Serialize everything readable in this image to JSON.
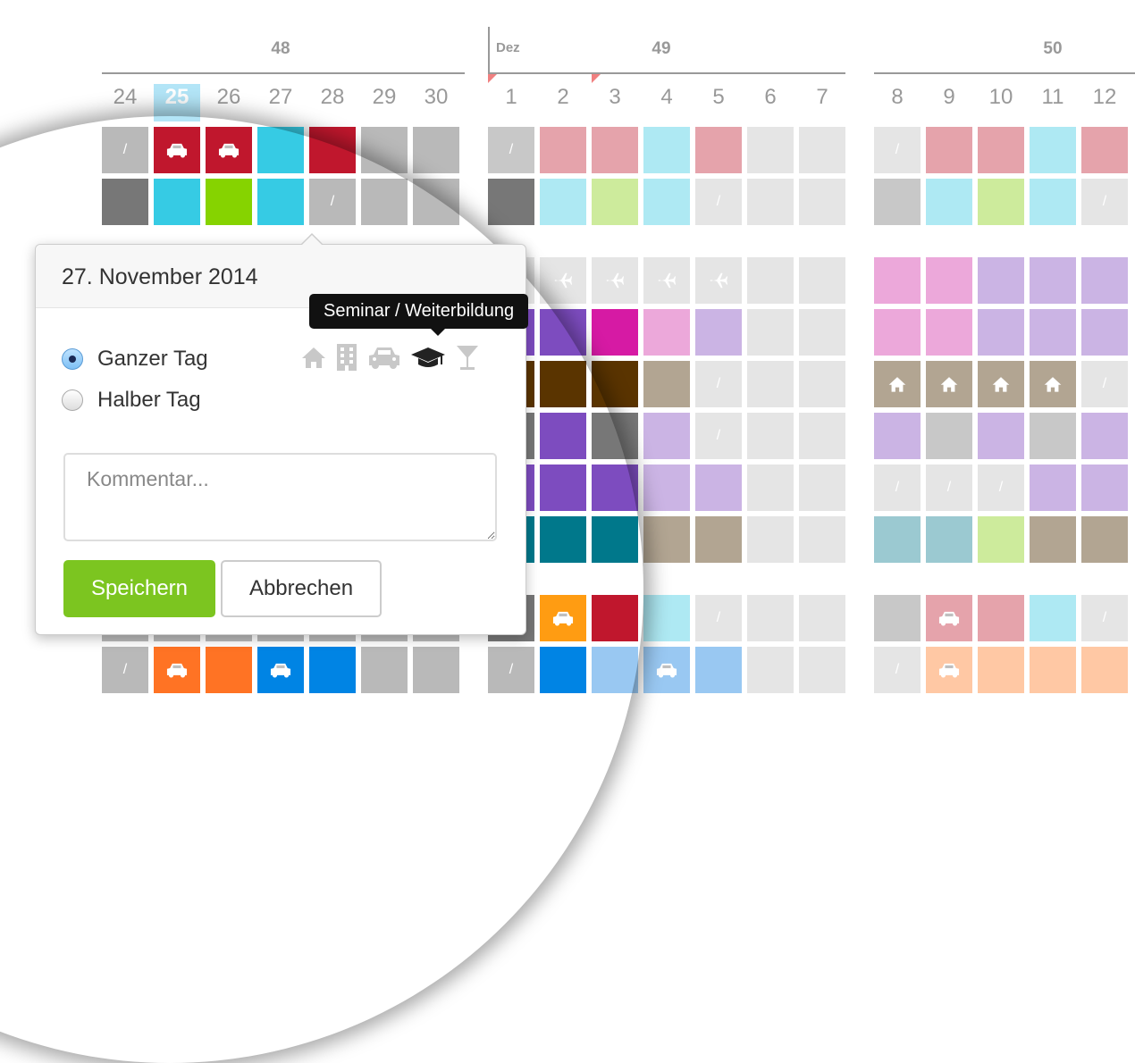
{
  "colors": {
    "gray": "#b9b9b9",
    "darkgray": "#777777",
    "red": "#c0172d",
    "cyan": "#36cbe4",
    "green": "#86d300",
    "purple": "#7d4cbf",
    "magenta": "#d61aa4",
    "brown": "#5a3400",
    "teal": "#00788b",
    "orange": "#ff9c12",
    "orangered": "#ff7324",
    "blue": "#0084e4",
    "lightgray": "#e5e5e5",
    "midgray": "#c8c8c8",
    "pinkred": "#e5a3ab",
    "lightcyan": "#aee9f3",
    "lightgreen": "#cdeb9c",
    "lightpink": "#eca8da",
    "lavender": "#cbb4e4",
    "tan": "#b2a592",
    "steel": "#9bc9d1",
    "peach": "#ffc8a4",
    "lightblue": "#99c8f2",
    "darkpurple": "#7d4cbf"
  },
  "calendar": {
    "weeks": [
      "48",
      "49",
      "50"
    ],
    "month_label": "Dez",
    "days": [
      "24",
      "25",
      "26",
      "27",
      "28",
      "29",
      "30",
      "1",
      "2",
      "3",
      "4",
      "5",
      "6",
      "7",
      "8",
      "9",
      "10",
      "11",
      "12"
    ],
    "today_index": 1,
    "rows": [
      [
        [
          "gray",
          "slash"
        ],
        [
          "red",
          "car"
        ],
        [
          "red",
          "car"
        ],
        [
          "cyan",
          ""
        ],
        [
          "red",
          ""
        ],
        [
          "gray",
          ""
        ],
        [
          "gray",
          ""
        ],
        [
          "midgray",
          "slash"
        ],
        [
          "pinkred",
          ""
        ],
        [
          "pinkred",
          ""
        ],
        [
          "lightcyan",
          ""
        ],
        [
          "pinkred",
          ""
        ],
        [
          "lightgray",
          ""
        ],
        [
          "lightgray",
          ""
        ],
        [
          "lightgray",
          "slash"
        ],
        [
          "pinkred",
          ""
        ],
        [
          "pinkred",
          ""
        ],
        [
          "lightcyan",
          ""
        ],
        [
          "pinkred",
          ""
        ]
      ],
      [
        [
          "darkgray",
          ""
        ],
        [
          "cyan",
          ""
        ],
        [
          "green",
          ""
        ],
        [
          "cyan",
          ""
        ],
        [
          "gray",
          "slash"
        ],
        [
          "gray",
          ""
        ],
        [
          "gray",
          ""
        ],
        [
          "darkgray",
          ""
        ],
        [
          "lightcyan",
          ""
        ],
        [
          "lightgreen",
          ""
        ],
        [
          "lightcyan",
          ""
        ],
        [
          "lightgray",
          "slash"
        ],
        [
          "lightgray",
          ""
        ],
        [
          "lightgray",
          ""
        ],
        [
          "midgray",
          ""
        ],
        [
          "lightcyan",
          ""
        ],
        [
          "lightgreen",
          ""
        ],
        [
          "lightcyan",
          ""
        ],
        [
          "lightgray",
          "slash"
        ]
      ],
      [
        [
          "gray",
          ""
        ],
        [
          "gray",
          ""
        ],
        [
          "gray",
          ""
        ],
        [
          "gray",
          ""
        ],
        [
          "gray",
          ""
        ],
        [
          "gray",
          ""
        ],
        [
          "gray",
          ""
        ],
        [
          "lightgray",
          ""
        ],
        [
          "lightgray",
          "plane"
        ],
        [
          "lightgray",
          "plane"
        ],
        [
          "lightgray",
          "plane"
        ],
        [
          "lightgray",
          "plane"
        ],
        [
          "lightgray",
          ""
        ],
        [
          "lightgray",
          ""
        ],
        [
          "lightpink",
          ""
        ],
        [
          "lightpink",
          ""
        ],
        [
          "lavender",
          ""
        ],
        [
          "lavender",
          ""
        ],
        [
          "lavender",
          ""
        ]
      ],
      [
        [
          "gray",
          ""
        ],
        [
          "gray",
          ""
        ],
        [
          "gray",
          ""
        ],
        [
          "gray",
          ""
        ],
        [
          "gray",
          ""
        ],
        [
          "gray",
          ""
        ],
        [
          "gray",
          ""
        ],
        [
          "purple",
          ""
        ],
        [
          "purple",
          ""
        ],
        [
          "magenta",
          ""
        ],
        [
          "lightpink",
          ""
        ],
        [
          "lavender",
          ""
        ],
        [
          "lightgray",
          ""
        ],
        [
          "lightgray",
          ""
        ],
        [
          "lightpink",
          ""
        ],
        [
          "lightpink",
          ""
        ],
        [
          "lavender",
          ""
        ],
        [
          "lavender",
          ""
        ],
        [
          "lavender",
          ""
        ]
      ],
      [
        [
          "gray",
          ""
        ],
        [
          "gray",
          ""
        ],
        [
          "gray",
          ""
        ],
        [
          "gray",
          ""
        ],
        [
          "gray",
          ""
        ],
        [
          "gray",
          ""
        ],
        [
          "gray",
          ""
        ],
        [
          "brown",
          ""
        ],
        [
          "brown",
          ""
        ],
        [
          "brown",
          ""
        ],
        [
          "tan",
          ""
        ],
        [
          "lightgray",
          "slash"
        ],
        [
          "lightgray",
          ""
        ],
        [
          "lightgray",
          ""
        ],
        [
          "tan",
          "house"
        ],
        [
          "tan",
          "house"
        ],
        [
          "tan",
          "house"
        ],
        [
          "tan",
          "house"
        ],
        [
          "lightgray",
          "slash"
        ]
      ],
      [
        [
          "gray",
          ""
        ],
        [
          "gray",
          ""
        ],
        [
          "gray",
          ""
        ],
        [
          "gray",
          ""
        ],
        [
          "gray",
          ""
        ],
        [
          "gray",
          ""
        ],
        [
          "gray",
          ""
        ],
        [
          "darkgray",
          ""
        ],
        [
          "purple",
          ""
        ],
        [
          "darkgray",
          ""
        ],
        [
          "lavender",
          ""
        ],
        [
          "lightgray",
          "slash"
        ],
        [
          "lightgray",
          ""
        ],
        [
          "lightgray",
          ""
        ],
        [
          "lavender",
          ""
        ],
        [
          "midgray",
          ""
        ],
        [
          "lavender",
          ""
        ],
        [
          "midgray",
          ""
        ],
        [
          "lavender",
          ""
        ]
      ],
      [
        [
          "gray",
          ""
        ],
        [
          "gray",
          ""
        ],
        [
          "gray",
          ""
        ],
        [
          "gray",
          ""
        ],
        [
          "gray",
          ""
        ],
        [
          "gray",
          ""
        ],
        [
          "gray",
          ""
        ],
        [
          "purple",
          ""
        ],
        [
          "purple",
          ""
        ],
        [
          "purple",
          ""
        ],
        [
          "lavender",
          ""
        ],
        [
          "lavender",
          ""
        ],
        [
          "lightgray",
          ""
        ],
        [
          "lightgray",
          ""
        ],
        [
          "lightgray",
          "slash"
        ],
        [
          "lightgray",
          "slash"
        ],
        [
          "lightgray",
          "slash"
        ],
        [
          "lavender",
          ""
        ],
        [
          "lavender",
          ""
        ]
      ],
      [
        [
          "gray",
          ""
        ],
        [
          "gray",
          ""
        ],
        [
          "gray",
          ""
        ],
        [
          "gray",
          ""
        ],
        [
          "gray",
          ""
        ],
        [
          "gray",
          ""
        ],
        [
          "gray",
          ""
        ],
        [
          "teal",
          ""
        ],
        [
          "teal",
          ""
        ],
        [
          "teal",
          ""
        ],
        [
          "tan",
          ""
        ],
        [
          "tan",
          ""
        ],
        [
          "lightgray",
          ""
        ],
        [
          "lightgray",
          ""
        ],
        [
          "steel",
          ""
        ],
        [
          "steel",
          ""
        ],
        [
          "lightgreen",
          ""
        ],
        [
          "tan",
          ""
        ],
        [
          "tan",
          ""
        ]
      ],
      [
        [
          "gray",
          ""
        ],
        [
          "gray",
          ""
        ],
        [
          "gray",
          ""
        ],
        [
          "gray",
          ""
        ],
        [
          "gray",
          ""
        ],
        [
          "gray",
          ""
        ],
        [
          "gray",
          ""
        ],
        [
          "darkgray",
          ""
        ],
        [
          "orange",
          "car"
        ],
        [
          "red",
          ""
        ],
        [
          "lightcyan",
          ""
        ],
        [
          "lightgray",
          "slash"
        ],
        [
          "lightgray",
          ""
        ],
        [
          "lightgray",
          ""
        ],
        [
          "midgray",
          ""
        ],
        [
          "pinkred",
          "car"
        ],
        [
          "pinkred",
          ""
        ],
        [
          "lightcyan",
          ""
        ],
        [
          "lightgray",
          "slash"
        ]
      ],
      [
        [
          "gray",
          "slash"
        ],
        [
          "orangered",
          "car"
        ],
        [
          "orangered",
          ""
        ],
        [
          "blue",
          "car"
        ],
        [
          "blue",
          ""
        ],
        [
          "gray",
          ""
        ],
        [
          "gray",
          ""
        ],
        [
          "gray",
          "slash"
        ],
        [
          "blue",
          ""
        ],
        [
          "lightblue",
          ""
        ],
        [
          "lightblue",
          "car"
        ],
        [
          "lightblue",
          ""
        ],
        [
          "lightgray",
          ""
        ],
        [
          "lightgray",
          ""
        ],
        [
          "lightgray",
          "slash"
        ],
        [
          "peach",
          "car"
        ],
        [
          "peach",
          ""
        ],
        [
          "peach",
          ""
        ],
        [
          "peach",
          ""
        ]
      ]
    ]
  },
  "popover": {
    "title": "27. November 2014",
    "options": [
      {
        "label": "Ganzer Tag",
        "selected": true
      },
      {
        "label": "Halber Tag",
        "selected": false
      }
    ],
    "tooltip": "Seminar / Weiterbildung",
    "type_icons": [
      "home-icon",
      "office-building-icon",
      "car-icon",
      "graduation-cap-icon",
      "cocktail-icon"
    ],
    "comment_placeholder": "Kommentar...",
    "save_label": "Speichern",
    "cancel_label": "Abbrechen"
  }
}
